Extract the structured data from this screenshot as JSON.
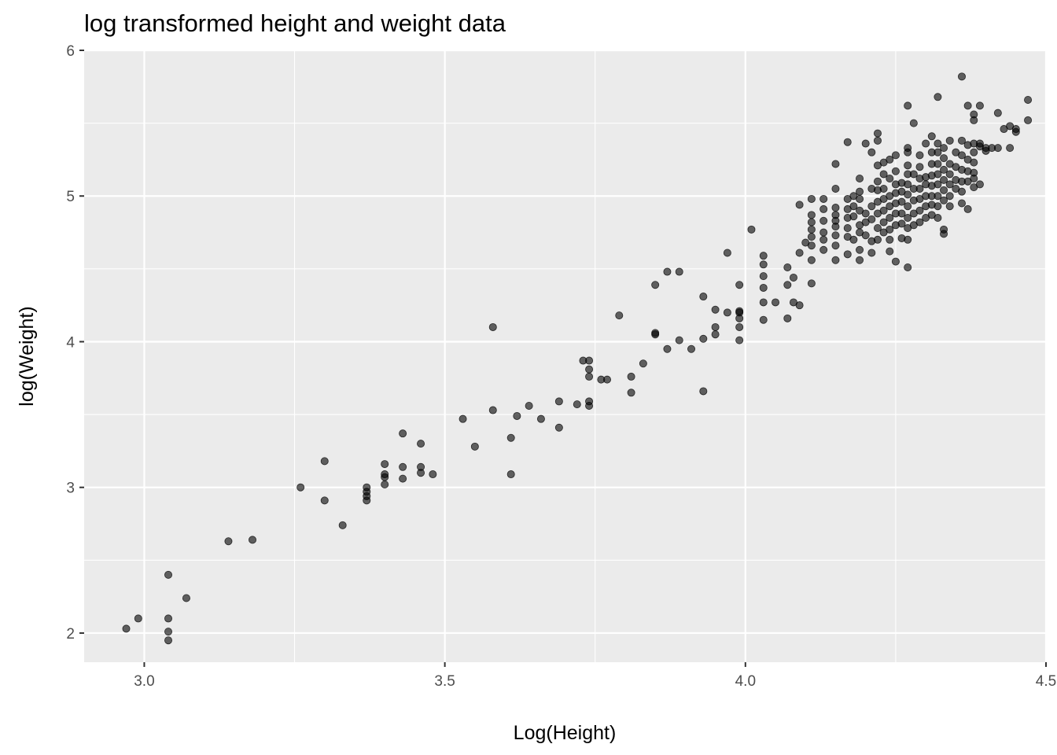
{
  "chart_data": {
    "type": "scatter",
    "title": "log transformed height and weight data",
    "xlabel": "Log(Height)",
    "ylabel": "log(Weight)",
    "xlim": [
      2.9,
      4.5
    ],
    "ylim": [
      1.8,
      6.0
    ],
    "x_ticks": [
      3.0,
      3.5,
      4.0,
      4.5
    ],
    "x_tick_labels": [
      "3.0",
      "3.5",
      "4.0",
      "4.5"
    ],
    "y_ticks": [
      2,
      3,
      4,
      5,
      6
    ],
    "y_tick_labels": [
      "2",
      "3",
      "4",
      "5",
      "6"
    ],
    "grid": true,
    "legend": "none",
    "point_color": "#000000",
    "point_alpha": 0.6,
    "panel_background": "#ebebeb",
    "grid_color": "#ffffff",
    "series": [
      {
        "points": [
          [
            2.97,
            2.03
          ],
          [
            2.99,
            2.1
          ],
          [
            3.04,
            2.4
          ],
          [
            3.04,
            2.1
          ],
          [
            3.04,
            2.01
          ],
          [
            3.04,
            1.95
          ],
          [
            3.07,
            2.24
          ],
          [
            3.14,
            2.63
          ],
          [
            3.18,
            2.64
          ],
          [
            3.26,
            3.0
          ],
          [
            3.3,
            3.18
          ],
          [
            3.3,
            2.91
          ],
          [
            3.33,
            2.74
          ],
          [
            3.37,
            3.0
          ],
          [
            3.37,
            2.97
          ],
          [
            3.37,
            2.94
          ],
          [
            3.37,
            2.91
          ],
          [
            3.4,
            3.16
          ],
          [
            3.4,
            3.09
          ],
          [
            3.4,
            3.07
          ],
          [
            3.4,
            3.02
          ],
          [
            3.43,
            3.37
          ],
          [
            3.43,
            3.14
          ],
          [
            3.43,
            3.06
          ],
          [
            3.46,
            3.3
          ],
          [
            3.46,
            3.14
          ],
          [
            3.46,
            3.1
          ],
          [
            3.48,
            3.09
          ],
          [
            3.53,
            3.47
          ],
          [
            3.55,
            3.28
          ],
          [
            3.58,
            4.1
          ],
          [
            3.58,
            3.53
          ],
          [
            3.61,
            3.34
          ],
          [
            3.61,
            3.09
          ],
          [
            3.62,
            3.49
          ],
          [
            3.64,
            3.56
          ],
          [
            3.66,
            3.47
          ],
          [
            3.69,
            3.59
          ],
          [
            3.69,
            3.41
          ],
          [
            3.72,
            3.57
          ],
          [
            3.73,
            3.87
          ],
          [
            3.74,
            3.87
          ],
          [
            3.74,
            3.81
          ],
          [
            3.74,
            3.76
          ],
          [
            3.74,
            3.59
          ],
          [
            3.74,
            3.56
          ],
          [
            3.76,
            3.74
          ],
          [
            3.77,
            3.74
          ],
          [
            3.79,
            4.18
          ],
          [
            3.81,
            3.76
          ],
          [
            3.81,
            3.65
          ],
          [
            3.83,
            3.85
          ],
          [
            3.85,
            4.39
          ],
          [
            3.85,
            4.06
          ],
          [
            3.85,
            4.05
          ],
          [
            3.87,
            4.48
          ],
          [
            3.87,
            3.95
          ],
          [
            3.89,
            4.48
          ],
          [
            3.89,
            4.01
          ],
          [
            3.91,
            3.95
          ],
          [
            3.93,
            4.31
          ],
          [
            3.93,
            4.02
          ],
          [
            3.93,
            3.66
          ],
          [
            3.95,
            4.22
          ],
          [
            3.95,
            4.1
          ],
          [
            3.95,
            4.05
          ],
          [
            3.97,
            4.61
          ],
          [
            3.97,
            4.2
          ],
          [
            3.99,
            4.39
          ],
          [
            3.99,
            4.21
          ],
          [
            3.99,
            4.2
          ],
          [
            3.99,
            4.16
          ],
          [
            3.99,
            4.1
          ],
          [
            3.99,
            4.01
          ],
          [
            4.01,
            4.77
          ],
          [
            4.03,
            4.59
          ],
          [
            4.03,
            4.53
          ],
          [
            4.03,
            4.45
          ],
          [
            4.03,
            4.37
          ],
          [
            4.03,
            4.27
          ],
          [
            4.03,
            4.15
          ],
          [
            4.05,
            4.27
          ],
          [
            4.07,
            4.51
          ],
          [
            4.07,
            4.39
          ],
          [
            4.07,
            4.16
          ],
          [
            4.08,
            4.44
          ],
          [
            4.08,
            4.27
          ],
          [
            4.09,
            4.61
          ],
          [
            4.09,
            4.25
          ],
          [
            4.09,
            4.94
          ],
          [
            4.1,
            4.68
          ],
          [
            4.11,
            4.4
          ],
          [
            4.11,
            4.98
          ],
          [
            4.11,
            4.87
          ],
          [
            4.11,
            4.82
          ],
          [
            4.11,
            4.77
          ],
          [
            4.11,
            4.72
          ],
          [
            4.11,
            4.66
          ],
          [
            4.11,
            4.56
          ],
          [
            4.13,
            4.91
          ],
          [
            4.13,
            4.98
          ],
          [
            4.13,
            4.83
          ],
          [
            4.13,
            4.75
          ],
          [
            4.13,
            4.7
          ],
          [
            4.13,
            4.63
          ],
          [
            4.15,
            5.22
          ],
          [
            4.15,
            4.92
          ],
          [
            4.15,
            4.87
          ],
          [
            4.15,
            4.83
          ],
          [
            4.15,
            4.79
          ],
          [
            4.15,
            4.73
          ],
          [
            4.15,
            4.66
          ],
          [
            4.15,
            4.56
          ],
          [
            4.15,
            5.05
          ],
          [
            4.17,
            5.37
          ],
          [
            4.17,
            4.98
          ],
          [
            4.17,
            4.91
          ],
          [
            4.17,
            4.85
          ],
          [
            4.17,
            4.78
          ],
          [
            4.17,
            4.72
          ],
          [
            4.17,
            4.6
          ],
          [
            4.18,
            4.86
          ],
          [
            4.18,
            4.7
          ],
          [
            4.18,
            5.0
          ],
          [
            4.18,
            4.93
          ],
          [
            4.19,
            4.8
          ],
          [
            4.19,
            4.75
          ],
          [
            4.19,
            4.63
          ],
          [
            4.19,
            4.56
          ],
          [
            4.19,
            5.12
          ],
          [
            4.19,
            5.03
          ],
          [
            4.19,
            4.98
          ],
          [
            4.19,
            4.9
          ],
          [
            4.2,
            5.36
          ],
          [
            4.2,
            4.88
          ],
          [
            4.2,
            4.82
          ],
          [
            4.2,
            4.73
          ],
          [
            4.21,
            5.3
          ],
          [
            4.21,
            5.05
          ],
          [
            4.21,
            4.93
          ],
          [
            4.21,
            4.84
          ],
          [
            4.21,
            4.69
          ],
          [
            4.21,
            4.61
          ],
          [
            4.22,
            5.43
          ],
          [
            4.22,
            5.38
          ],
          [
            4.22,
            5.21
          ],
          [
            4.22,
            5.1
          ],
          [
            4.22,
            5.04
          ],
          [
            4.22,
            4.96
          ],
          [
            4.22,
            4.88
          ],
          [
            4.22,
            4.78
          ],
          [
            4.22,
            4.7
          ],
          [
            4.23,
            5.23
          ],
          [
            4.23,
            5.15
          ],
          [
            4.23,
            5.05
          ],
          [
            4.23,
            4.98
          ],
          [
            4.23,
            4.9
          ],
          [
            4.23,
            4.82
          ],
          [
            4.23,
            4.75
          ],
          [
            4.24,
            5.25
          ],
          [
            4.24,
            5.12
          ],
          [
            4.24,
            5.0
          ],
          [
            4.24,
            4.93
          ],
          [
            4.24,
            4.85
          ],
          [
            4.24,
            4.77
          ],
          [
            4.24,
            4.7
          ],
          [
            4.24,
            4.62
          ],
          [
            4.25,
            5.28
          ],
          [
            4.25,
            5.17
          ],
          [
            4.25,
            5.08
          ],
          [
            4.25,
            5.02
          ],
          [
            4.25,
            4.95
          ],
          [
            4.25,
            4.88
          ],
          [
            4.25,
            4.8
          ],
          [
            4.25,
            4.55
          ],
          [
            4.26,
            5.09
          ],
          [
            4.26,
            5.03
          ],
          [
            4.26,
            4.96
          ],
          [
            4.26,
            4.88
          ],
          [
            4.26,
            4.81
          ],
          [
            4.26,
            4.71
          ],
          [
            4.27,
            5.62
          ],
          [
            4.27,
            5.33
          ],
          [
            4.27,
            5.3
          ],
          [
            4.27,
            5.21
          ],
          [
            4.27,
            5.15
          ],
          [
            4.27,
            5.08
          ],
          [
            4.27,
            5.01
          ],
          [
            4.27,
            4.93
          ],
          [
            4.27,
            4.85
          ],
          [
            4.27,
            4.78
          ],
          [
            4.27,
            4.7
          ],
          [
            4.27,
            4.51
          ],
          [
            4.28,
            5.5
          ],
          [
            4.28,
            5.15
          ],
          [
            4.28,
            5.05
          ],
          [
            4.28,
            4.97
          ],
          [
            4.28,
            4.88
          ],
          [
            4.28,
            4.8
          ],
          [
            4.29,
            5.28
          ],
          [
            4.29,
            5.2
          ],
          [
            4.29,
            5.12
          ],
          [
            4.29,
            5.05
          ],
          [
            4.29,
            4.98
          ],
          [
            4.29,
            4.9
          ],
          [
            4.29,
            4.82
          ],
          [
            4.3,
            5.36
          ],
          [
            4.3,
            5.13
          ],
          [
            4.3,
            5.08
          ],
          [
            4.3,
            5.0
          ],
          [
            4.3,
            4.93
          ],
          [
            4.3,
            4.85
          ],
          [
            4.31,
            5.41
          ],
          [
            4.31,
            5.3
          ],
          [
            4.31,
            5.22
          ],
          [
            4.31,
            5.14
          ],
          [
            4.31,
            5.07
          ],
          [
            4.31,
            5.0
          ],
          [
            4.31,
            4.94
          ],
          [
            4.31,
            4.87
          ],
          [
            4.32,
            5.68
          ],
          [
            4.32,
            5.36
          ],
          [
            4.32,
            5.3
          ],
          [
            4.32,
            5.22
          ],
          [
            4.32,
            5.15
          ],
          [
            4.32,
            5.08
          ],
          [
            4.32,
            5.0
          ],
          [
            4.32,
            4.93
          ],
          [
            4.32,
            4.85
          ],
          [
            4.33,
            5.33
          ],
          [
            4.33,
            5.26
          ],
          [
            4.33,
            5.18
          ],
          [
            4.33,
            5.11
          ],
          [
            4.33,
            5.04
          ],
          [
            4.33,
            4.97
          ],
          [
            4.33,
            4.77
          ],
          [
            4.33,
            4.74
          ],
          [
            4.34,
            5.38
          ],
          [
            4.34,
            5.22
          ],
          [
            4.34,
            5.15
          ],
          [
            4.34,
            5.08
          ],
          [
            4.34,
            5.0
          ],
          [
            4.34,
            4.93
          ],
          [
            4.35,
            5.3
          ],
          [
            4.35,
            5.2
          ],
          [
            4.35,
            5.11
          ],
          [
            4.35,
            5.05
          ],
          [
            4.36,
            5.82
          ],
          [
            4.36,
            5.38
          ],
          [
            4.36,
            5.28
          ],
          [
            4.36,
            5.18
          ],
          [
            4.36,
            5.1
          ],
          [
            4.36,
            5.03
          ],
          [
            4.36,
            4.95
          ],
          [
            4.37,
            5.62
          ],
          [
            4.37,
            5.35
          ],
          [
            4.37,
            5.25
          ],
          [
            4.37,
            5.17
          ],
          [
            4.37,
            5.1
          ],
          [
            4.37,
            4.91
          ],
          [
            4.38,
            5.56
          ],
          [
            4.38,
            5.52
          ],
          [
            4.38,
            5.36
          ],
          [
            4.38,
            5.3
          ],
          [
            4.38,
            5.23
          ],
          [
            4.38,
            5.16
          ],
          [
            4.38,
            5.12
          ],
          [
            4.38,
            5.06
          ],
          [
            4.39,
            5.62
          ],
          [
            4.39,
            5.36
          ],
          [
            4.39,
            5.34
          ],
          [
            4.39,
            5.08
          ],
          [
            4.4,
            5.31
          ],
          [
            4.4,
            5.33
          ],
          [
            4.41,
            5.33
          ],
          [
            4.42,
            5.57
          ],
          [
            4.42,
            5.33
          ],
          [
            4.43,
            5.46
          ],
          [
            4.44,
            5.33
          ],
          [
            4.44,
            5.48
          ],
          [
            4.45,
            5.46
          ],
          [
            4.45,
            5.44
          ],
          [
            4.47,
            5.52
          ],
          [
            4.47,
            5.66
          ]
        ]
      }
    ]
  }
}
